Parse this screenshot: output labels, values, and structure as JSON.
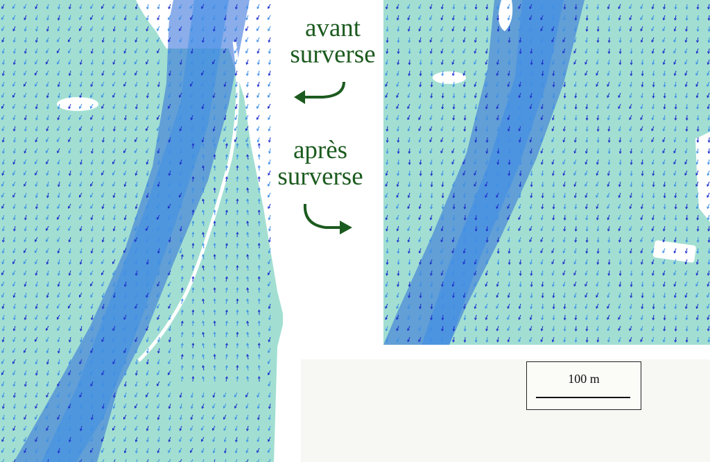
{
  "captions": {
    "before_line1": "avant",
    "before_line2": "surverse",
    "after_line1": "après",
    "after_line2": "surverse"
  },
  "scale_bar": {
    "label": "100 m"
  },
  "colors": {
    "water": "#a2dfd2",
    "channel": "#2b69d8",
    "vector_dark": "#1b2fcc",
    "vector_light": "#3f8ee6",
    "caption": "#1c5b1f"
  }
}
